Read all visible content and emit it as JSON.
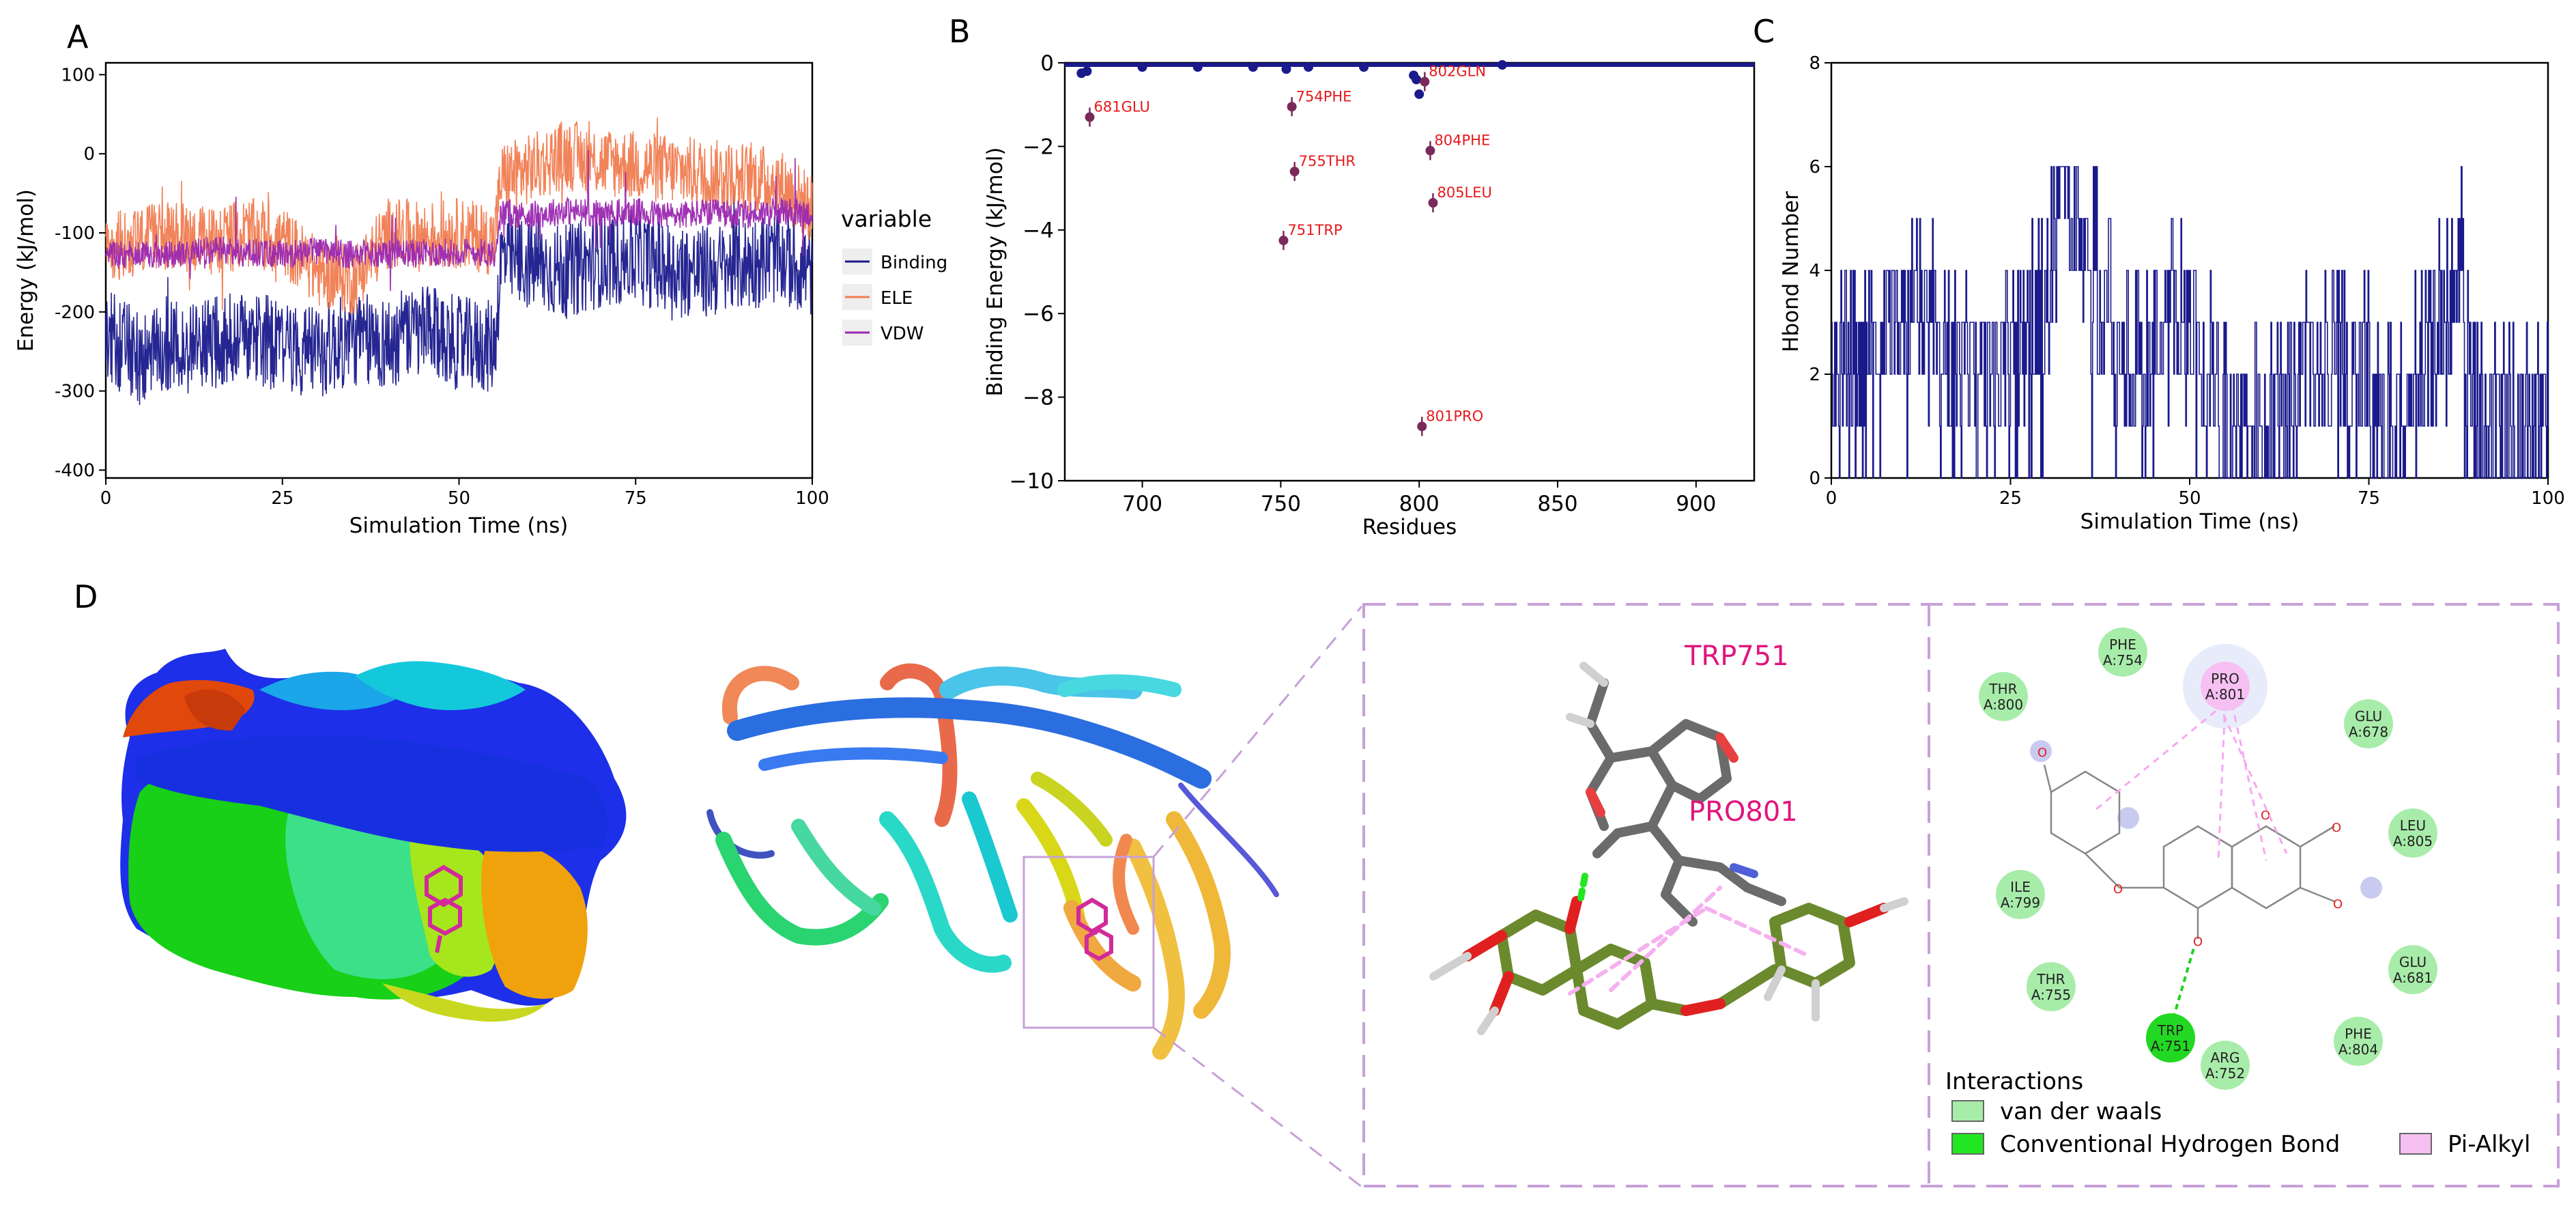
{
  "panels": {
    "A": {
      "letter": "A",
      "chart_data": {
        "type": "line",
        "xlabel": "Simulation Time (ns)",
        "ylabel": "Energy (kJ/mol)",
        "xlim": [
          0,
          100
        ],
        "ylim": [
          -410,
          115
        ],
        "x_ticks": [
          0,
          25,
          50,
          75,
          100
        ],
        "y_ticks": [
          100,
          0,
          -100,
          -200,
          -300,
          -400
        ],
        "legend_title": "variable",
        "legend_position": "right",
        "series": [
          {
            "name": "Binding",
            "color": "#1a1a8c",
            "x": [
              0,
              5,
              10,
              15,
              20,
              25,
              30,
              35,
              40,
              45,
              50,
              55,
              56,
              60,
              65,
              70,
              75,
              80,
              85,
              90,
              95,
              100
            ],
            "values": [
              -230,
              -260,
              -245,
              -240,
              -230,
              -245,
              -250,
              -235,
              -240,
              -225,
              -240,
              -245,
              -130,
              -140,
              -150,
              -135,
              -130,
              -145,
              -150,
              -140,
              -130,
              -150
            ]
          },
          {
            "name": "ELE",
            "color": "#f07c50",
            "x": [
              0,
              5,
              10,
              15,
              20,
              25,
              30,
              35,
              40,
              45,
              50,
              55,
              56,
              60,
              65,
              70,
              75,
              80,
              85,
              90,
              95,
              100
            ],
            "values": [
              -120,
              -110,
              -105,
              -110,
              -100,
              -110,
              -150,
              -160,
              -100,
              -105,
              -100,
              -110,
              -30,
              -20,
              0,
              -10,
              -15,
              -20,
              -25,
              -30,
              -35,
              -70
            ]
          },
          {
            "name": "VDW",
            "color": "#9b27b0",
            "x": [
              0,
              5,
              10,
              15,
              20,
              25,
              30,
              35,
              40,
              45,
              50,
              55,
              56,
              60,
              65,
              70,
              75,
              80,
              85,
              90,
              95,
              100
            ],
            "values": [
              -130,
              -125,
              -128,
              -122,
              -125,
              -127,
              -123,
              -128,
              -125,
              -126,
              -124,
              -125,
              -75,
              -78,
              -72,
              -76,
              -74,
              -78,
              -75,
              -77,
              -73,
              -76
            ]
          }
        ]
      }
    },
    "B": {
      "letter": "B",
      "chart_data": {
        "type": "scatter",
        "xlabel": "Residues",
        "ylabel": "Binding Energy (kJ/mol)",
        "xlim": [
          672,
          921
        ],
        "ylim": [
          -10,
          0
        ],
        "x_ticks": [
          700,
          750,
          800,
          850,
          900
        ],
        "y_ticks": [
          0,
          -2,
          -4,
          -6,
          -8,
          -10
        ],
        "labeled_points": [
          {
            "residue": 681,
            "energy": -1.3,
            "label": "681GLU"
          },
          {
            "residue": 754,
            "energy": -1.05,
            "label": "754PHE"
          },
          {
            "residue": 755,
            "energy": -2.6,
            "label": "755THR"
          },
          {
            "residue": 751,
            "energy": -4.25,
            "label": "751TRP"
          },
          {
            "residue": 802,
            "energy": -0.45,
            "label": "802GLN"
          },
          {
            "residue": 804,
            "energy": -2.1,
            "label": "804PHE"
          },
          {
            "residue": 805,
            "energy": -3.35,
            "label": "805LEU"
          },
          {
            "residue": 801,
            "energy": -8.7,
            "label": "801PRO"
          }
        ],
        "baseline": {
          "from": 672,
          "to": 921,
          "value": -0.05
        },
        "small_points": [
          {
            "residue": 678,
            "energy": -0.25
          },
          {
            "residue": 680,
            "energy": -0.2
          },
          {
            "residue": 700,
            "energy": -0.1
          },
          {
            "residue": 720,
            "energy": -0.1
          },
          {
            "residue": 740,
            "energy": -0.1
          },
          {
            "residue": 752,
            "energy": -0.15
          },
          {
            "residue": 760,
            "energy": -0.1
          },
          {
            "residue": 780,
            "energy": -0.1
          },
          {
            "residue": 798,
            "energy": -0.3
          },
          {
            "residue": 800,
            "energy": -0.75
          },
          {
            "residue": 799,
            "energy": -0.4
          },
          {
            "residue": 830,
            "energy": -0.05
          }
        ],
        "color": "#1a1a8c",
        "highlight_color": "#7a2a5a",
        "label_color": "#e41a1c"
      }
    },
    "C": {
      "letter": "C",
      "chart_data": {
        "type": "line",
        "xlabel": "Simulation Time (ns)",
        "ylabel": "Hbond Number",
        "xlim": [
          0,
          100
        ],
        "ylim": [
          0,
          8
        ],
        "x_ticks": [
          0,
          25,
          50,
          75,
          100
        ],
        "y_ticks": [
          0,
          2,
          4,
          6,
          8
        ],
        "series": [
          {
            "name": "",
            "color": "#1a1a8c",
            "x": [
              0,
              10,
              20,
              30,
              32,
              40,
              50,
              53,
              55,
              60,
              70,
              80,
              88,
              90,
              100
            ],
            "values": [
              2,
              3,
              2,
              3,
              6,
              2,
              3,
              2,
              1,
              1,
              2,
              1,
              4,
              1,
              1
            ]
          }
        ]
      }
    },
    "D": {
      "letter": "D",
      "residue_labels_3d": [
        "TRP751",
        "PRO801"
      ],
      "residue_2d": [
        {
          "name": "PHE",
          "chain": "A:754",
          "kind": "vdw"
        },
        {
          "name": "THR",
          "chain": "A:800",
          "kind": "vdw"
        },
        {
          "name": "PRO",
          "chain": "A:801",
          "kind": "alkyl"
        },
        {
          "name": "GLU",
          "chain": "A:678",
          "kind": "vdw"
        },
        {
          "name": "LEU",
          "chain": "A:805",
          "kind": "vdw"
        },
        {
          "name": "ILE",
          "chain": "A:799",
          "kind": "vdw"
        },
        {
          "name": "GLU",
          "chain": "A:681",
          "kind": "vdw"
        },
        {
          "name": "THR",
          "chain": "A:755",
          "kind": "vdw"
        },
        {
          "name": "TRP",
          "chain": "A:751",
          "kind": "hbond"
        },
        {
          "name": "PHE",
          "chain": "A:804",
          "kind": "vdw"
        },
        {
          "name": "ARG",
          "chain": "A:752",
          "kind": "vdw"
        }
      ],
      "legend_title": "Interactions",
      "legend_items": [
        {
          "label": "van der waals",
          "color": "#a8ecaa"
        },
        {
          "label": "Conventional Hydrogen Bond",
          "color": "#22e622"
        },
        {
          "label": "Pi-Alkyl",
          "color": "#f6c0f2"
        }
      ]
    }
  }
}
